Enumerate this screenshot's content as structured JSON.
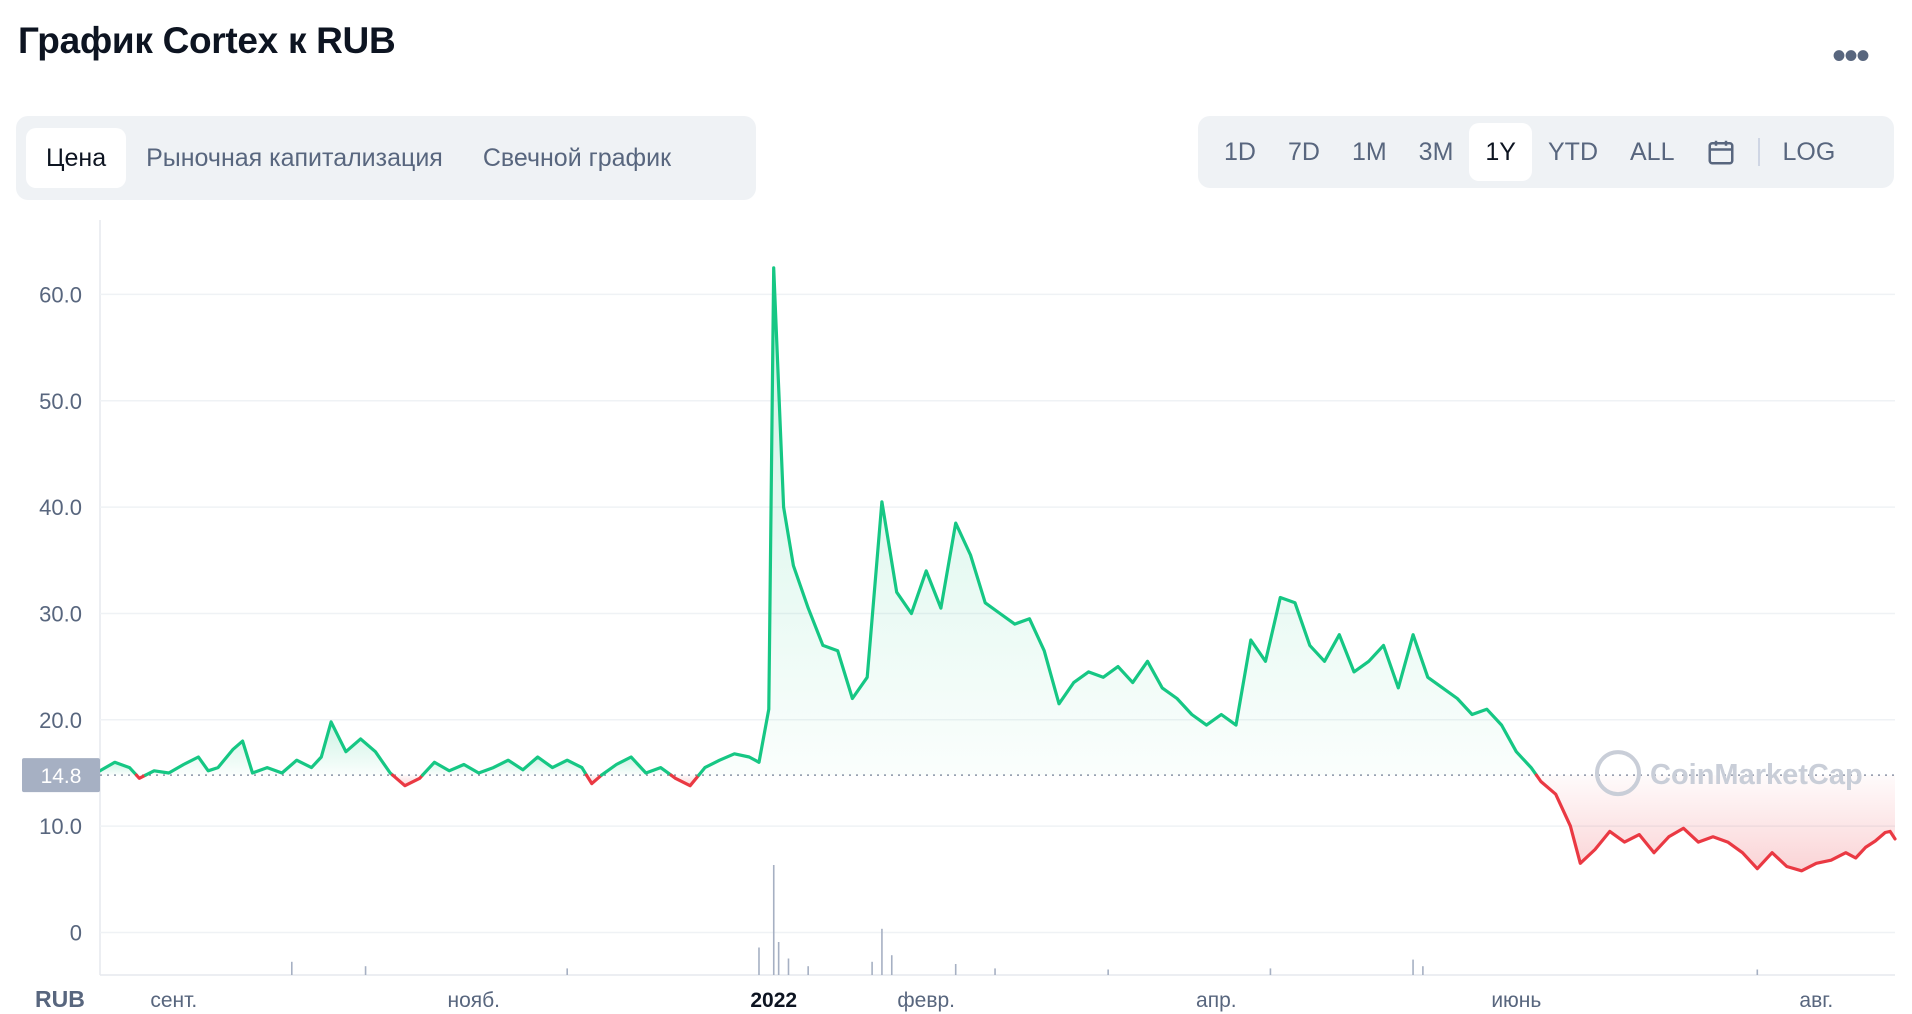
{
  "title": "График Cortex к RUB",
  "more_label": "•••",
  "chart_tabs": [
    {
      "label": "Цена",
      "active": true
    },
    {
      "label": "Рыночная капитализация",
      "active": false
    },
    {
      "label": "Свечной график",
      "active": false
    }
  ],
  "range_buttons": [
    {
      "label": "1D",
      "active": false
    },
    {
      "label": "7D",
      "active": false
    },
    {
      "label": "1M",
      "active": false
    },
    {
      "label": "3M",
      "active": false
    },
    {
      "label": "1Y",
      "active": true
    },
    {
      "label": "YTD",
      "active": false
    },
    {
      "label": "ALL",
      "active": false
    }
  ],
  "calendar_icon": "calendar-icon",
  "log_label": "LOG",
  "watermark": "CoinMarketCap",
  "colors": {
    "up": "#16c784",
    "down": "#ea3943",
    "grid": "#eff2f5",
    "axis_text": "#58667e"
  },
  "chart_data": {
    "type": "line",
    "currency_label": "RUB",
    "reference_value": 14.8,
    "reference_label": "14.8",
    "y_ticks": [
      0,
      10.0,
      20.0,
      30.0,
      40.0,
      50.0,
      60.0
    ],
    "y_tick_labels": [
      "0",
      "10.0",
      "20.0",
      "30.0",
      "40.0",
      "50.0",
      "60.0"
    ],
    "ylim": [
      -4,
      67
    ],
    "x_labels": [
      {
        "label": "сент.",
        "date": "2021-09-01",
        "bold": false
      },
      {
        "label": "нояб.",
        "date": "2021-11-01",
        "bold": false
      },
      {
        "label": "2022",
        "date": "2022-01-01",
        "bold": true
      },
      {
        "label": "февр.",
        "date": "2022-02-01",
        "bold": false
      },
      {
        "label": "апр.",
        "date": "2022-04-01",
        "bold": false
      },
      {
        "label": "июнь",
        "date": "2022-06-01",
        "bold": false
      },
      {
        "label": "авг.",
        "date": "2022-08-01",
        "bold": false
      }
    ],
    "x_range": [
      "2021-08-17",
      "2022-08-17"
    ],
    "series": [
      {
        "points": [
          [
            "2021-08-17",
            15.2
          ],
          [
            "2021-08-20",
            16.0
          ],
          [
            "2021-08-23",
            15.5
          ],
          [
            "2021-08-25",
            14.5
          ],
          [
            "2021-08-28",
            15.2
          ],
          [
            "2021-08-31",
            15.0
          ],
          [
            "2021-09-03",
            15.8
          ],
          [
            "2021-09-06",
            16.5
          ],
          [
            "2021-09-08",
            15.2
          ],
          [
            "2021-09-10",
            15.5
          ],
          [
            "2021-09-13",
            17.2
          ],
          [
            "2021-09-15",
            18.0
          ],
          [
            "2021-09-17",
            15.0
          ],
          [
            "2021-09-20",
            15.5
          ],
          [
            "2021-09-23",
            15.0
          ],
          [
            "2021-09-26",
            16.2
          ],
          [
            "2021-09-29",
            15.5
          ],
          [
            "2021-10-01",
            16.5
          ],
          [
            "2021-10-03",
            19.8
          ],
          [
            "2021-10-06",
            17.0
          ],
          [
            "2021-10-09",
            18.2
          ],
          [
            "2021-10-12",
            17.0
          ],
          [
            "2021-10-15",
            15.0
          ],
          [
            "2021-10-18",
            13.8
          ],
          [
            "2021-10-21",
            14.5
          ],
          [
            "2021-10-24",
            16.0
          ],
          [
            "2021-10-27",
            15.2
          ],
          [
            "2021-10-30",
            15.8
          ],
          [
            "2021-11-02",
            15.0
          ],
          [
            "2021-11-05",
            15.5
          ],
          [
            "2021-11-08",
            16.2
          ],
          [
            "2021-11-11",
            15.3
          ],
          [
            "2021-11-14",
            16.5
          ],
          [
            "2021-11-17",
            15.5
          ],
          [
            "2021-11-20",
            16.2
          ],
          [
            "2021-11-23",
            15.5
          ],
          [
            "2021-11-25",
            14.0
          ],
          [
            "2021-11-27",
            14.8
          ],
          [
            "2021-11-30",
            15.8
          ],
          [
            "2021-12-03",
            16.5
          ],
          [
            "2021-12-06",
            15.0
          ],
          [
            "2021-12-09",
            15.5
          ],
          [
            "2021-12-12",
            14.5
          ],
          [
            "2021-12-15",
            13.8
          ],
          [
            "2021-12-18",
            15.5
          ],
          [
            "2021-12-21",
            16.2
          ],
          [
            "2021-12-24",
            16.8
          ],
          [
            "2021-12-27",
            16.5
          ],
          [
            "2021-12-29",
            16.0
          ],
          [
            "2021-12-31",
            21.0
          ],
          [
            "2022-01-01",
            62.5
          ],
          [
            "2022-01-03",
            40.0
          ],
          [
            "2022-01-05",
            34.5
          ],
          [
            "2022-01-08",
            30.5
          ],
          [
            "2022-01-11",
            27.0
          ],
          [
            "2022-01-14",
            26.5
          ],
          [
            "2022-01-17",
            22.0
          ],
          [
            "2022-01-20",
            24.0
          ],
          [
            "2022-01-23",
            40.5
          ],
          [
            "2022-01-26",
            32.0
          ],
          [
            "2022-01-29",
            30.0
          ],
          [
            "2022-02-01",
            34.0
          ],
          [
            "2022-02-04",
            30.5
          ],
          [
            "2022-02-07",
            38.5
          ],
          [
            "2022-02-10",
            35.5
          ],
          [
            "2022-02-13",
            31.0
          ],
          [
            "2022-02-16",
            30.0
          ],
          [
            "2022-02-19",
            29.0
          ],
          [
            "2022-02-22",
            29.5
          ],
          [
            "2022-02-25",
            26.5
          ],
          [
            "2022-02-28",
            21.5
          ],
          [
            "2022-03-03",
            23.5
          ],
          [
            "2022-03-06",
            24.5
          ],
          [
            "2022-03-09",
            24.0
          ],
          [
            "2022-03-12",
            25.0
          ],
          [
            "2022-03-15",
            23.5
          ],
          [
            "2022-03-18",
            25.5
          ],
          [
            "2022-03-21",
            23.0
          ],
          [
            "2022-03-24",
            22.0
          ],
          [
            "2022-03-27",
            20.5
          ],
          [
            "2022-03-30",
            19.5
          ],
          [
            "2022-04-02",
            20.5
          ],
          [
            "2022-04-05",
            19.5
          ],
          [
            "2022-04-08",
            27.5
          ],
          [
            "2022-04-11",
            25.5
          ],
          [
            "2022-04-14",
            31.5
          ],
          [
            "2022-04-17",
            31.0
          ],
          [
            "2022-04-20",
            27.0
          ],
          [
            "2022-04-23",
            25.5
          ],
          [
            "2022-04-26",
            28.0
          ],
          [
            "2022-04-29",
            24.5
          ],
          [
            "2022-05-02",
            25.5
          ],
          [
            "2022-05-05",
            27.0
          ],
          [
            "2022-05-08",
            23.0
          ],
          [
            "2022-05-11",
            28.0
          ],
          [
            "2022-05-14",
            24.0
          ],
          [
            "2022-05-17",
            23.0
          ],
          [
            "2022-05-20",
            22.0
          ],
          [
            "2022-05-23",
            20.5
          ],
          [
            "2022-05-26",
            21.0
          ],
          [
            "2022-05-29",
            19.5
          ],
          [
            "2022-06-01",
            17.0
          ],
          [
            "2022-06-04",
            15.5
          ],
          [
            "2022-06-06",
            14.2
          ],
          [
            "2022-06-09",
            13.0
          ],
          [
            "2022-06-12",
            10.0
          ],
          [
            "2022-06-14",
            6.5
          ],
          [
            "2022-06-17",
            7.8
          ],
          [
            "2022-06-20",
            9.5
          ],
          [
            "2022-06-23",
            8.5
          ],
          [
            "2022-06-26",
            9.2
          ],
          [
            "2022-06-29",
            7.5
          ],
          [
            "2022-07-02",
            9.0
          ],
          [
            "2022-07-05",
            9.8
          ],
          [
            "2022-07-08",
            8.5
          ],
          [
            "2022-07-11",
            9.0
          ],
          [
            "2022-07-14",
            8.5
          ],
          [
            "2022-07-17",
            7.5
          ],
          [
            "2022-07-20",
            6.0
          ],
          [
            "2022-07-23",
            7.5
          ],
          [
            "2022-07-26",
            6.2
          ],
          [
            "2022-07-29",
            5.8
          ],
          [
            "2022-08-01",
            6.5
          ],
          [
            "2022-08-04",
            6.8
          ],
          [
            "2022-08-07",
            7.5
          ],
          [
            "2022-08-09",
            7.0
          ],
          [
            "2022-08-11",
            8.0
          ],
          [
            "2022-08-13",
            8.6
          ],
          [
            "2022-08-15",
            9.4
          ],
          [
            "2022-08-16",
            9.5
          ],
          [
            "2022-08-17",
            8.8
          ]
        ]
      }
    ],
    "volume": [
      [
        "2021-09-25",
        0.12
      ],
      [
        "2021-10-10",
        0.08
      ],
      [
        "2021-11-20",
        0.06
      ],
      [
        "2021-12-29",
        0.25
      ],
      [
        "2022-01-01",
        1.0
      ],
      [
        "2022-01-02",
        0.3
      ],
      [
        "2022-01-04",
        0.15
      ],
      [
        "2022-01-08",
        0.08
      ],
      [
        "2022-01-21",
        0.12
      ],
      [
        "2022-01-23",
        0.42
      ],
      [
        "2022-01-25",
        0.18
      ],
      [
        "2022-02-07",
        0.1
      ],
      [
        "2022-02-15",
        0.06
      ],
      [
        "2022-03-10",
        0.05
      ],
      [
        "2022-04-12",
        0.06
      ],
      [
        "2022-05-11",
        0.14
      ],
      [
        "2022-05-13",
        0.08
      ],
      [
        "2022-07-20",
        0.05
      ]
    ]
  }
}
